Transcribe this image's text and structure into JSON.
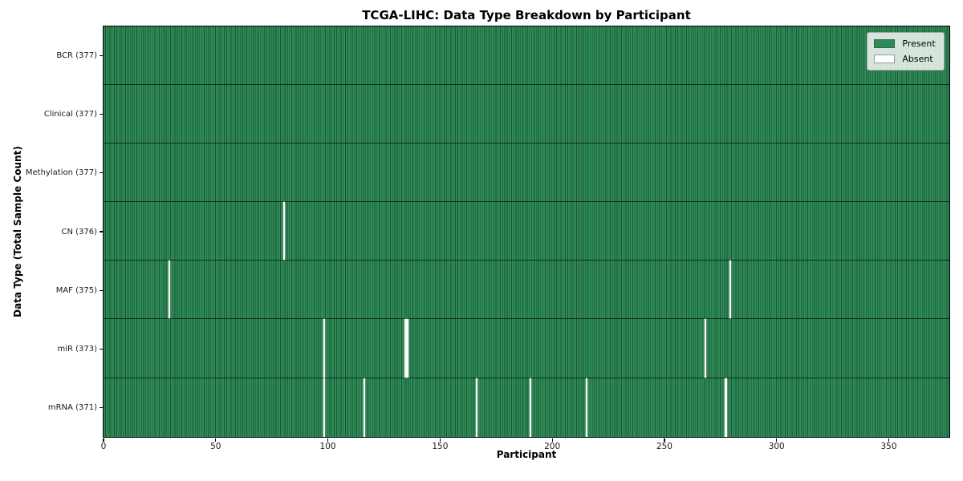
{
  "title": "TCGA-LIHC: Data Type Breakdown by Participant",
  "chart_data": {
    "type": "heatmap",
    "title": "TCGA-LIHC: Data Type Breakdown by Participant",
    "xlabel": "Participant",
    "ylabel": "Data Type (Total Sample Count)",
    "n_participants": 377,
    "x_range": [
      0,
      377
    ],
    "x_ticks": [
      0,
      50,
      100,
      150,
      200,
      250,
      300,
      350
    ],
    "grid": false,
    "legend_position": "upper right",
    "legend": [
      {
        "label": "Present",
        "color": "#2e8b57"
      },
      {
        "label": "Absent",
        "color": "#ffffff"
      }
    ],
    "rows": [
      {
        "name": "BCR",
        "label": "BCR (377)",
        "total": 377,
        "absent_participants": []
      },
      {
        "name": "Clinical",
        "label": "Clinical (377)",
        "total": 377,
        "absent_participants": []
      },
      {
        "name": "Methylation",
        "label": "Methylation (377)",
        "total": 377,
        "absent_participants": []
      },
      {
        "name": "CN",
        "label": "CN (376)",
        "total": 376,
        "absent_participants": [
          80
        ]
      },
      {
        "name": "MAF",
        "label": "MAF (375)",
        "total": 375,
        "absent_participants": [
          29,
          279
        ]
      },
      {
        "name": "miR",
        "label": "miR (373)",
        "total": 373,
        "absent_participants": [
          98,
          134,
          135,
          268
        ]
      },
      {
        "name": "mRNA",
        "label": "mRNA (371)",
        "total": 371,
        "absent_participants": [
          98,
          116,
          166,
          190,
          215,
          277
        ]
      }
    ],
    "colors": {
      "present": "#2e8b57",
      "absent": "#ffffff",
      "cell_line": "#1b5434",
      "row_line": "#081e12",
      "spine": "#000000",
      "background": "#ffffff"
    }
  }
}
